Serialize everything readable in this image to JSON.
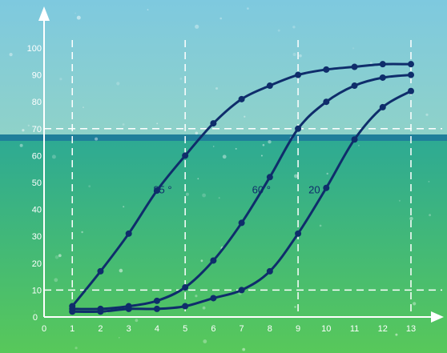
{
  "colors": {
    "sky_top": "#7ec9df",
    "sky_bottom": "#8fd2c8",
    "horizon": "#1f7f9a",
    "sea_top": "#2eaa93",
    "sea_bottom": "#58c85a",
    "axis": "#ffffff",
    "grid": "#ffffff",
    "curve": "#0f2d6b"
  },
  "chart_data": {
    "type": "line",
    "xlim": [
      0,
      13
    ],
    "ylim": [
      0,
      100
    ],
    "x_ticks": [
      "0",
      "1",
      "2",
      "3",
      "4",
      "5",
      "6",
      "7",
      "8",
      "9",
      "10",
      "11",
      "12",
      "13"
    ],
    "y_ticks": [
      "0",
      "10",
      "20",
      "30",
      "40",
      "50",
      "60",
      "70",
      "80",
      "90",
      "100"
    ],
    "grid": {
      "vertical_dashed_at_x": [
        1,
        5,
        9,
        13
      ],
      "horizontal_dashed_at_y": [
        10,
        70
      ]
    },
    "series": [
      {
        "name": "85 °",
        "label_at": [
          4.2,
          46
        ],
        "x": [
          1,
          2,
          3,
          4,
          5,
          6,
          7,
          8,
          9,
          10,
          11,
          12,
          13
        ],
        "y": [
          4,
          17,
          31,
          47,
          60,
          72,
          81,
          86,
          90,
          92,
          93,
          94,
          94
        ]
      },
      {
        "name": "60 °",
        "label_at": [
          7.7,
          46
        ],
        "x": [
          1,
          2,
          3,
          4,
          5,
          6,
          7,
          8,
          9,
          10,
          11,
          12,
          13
        ],
        "y": [
          3,
          3,
          4,
          6,
          11,
          21,
          35,
          52,
          70,
          80,
          86,
          89,
          90
        ]
      },
      {
        "name": "20 °",
        "label_at": [
          9.7,
          46
        ],
        "x": [
          1,
          2,
          3,
          4,
          5,
          6,
          7,
          8,
          9,
          10,
          11,
          12,
          13
        ],
        "y": [
          2,
          2,
          3,
          3,
          4,
          7,
          10,
          17,
          31,
          48,
          66,
          78,
          84
        ]
      }
    ]
  }
}
